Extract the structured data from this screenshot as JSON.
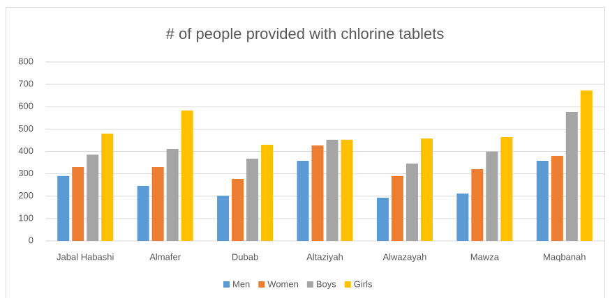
{
  "chart_data": {
    "type": "bar",
    "title": "# of people provided with chlorine tablets",
    "categories": [
      "Jabal Habashi",
      "Almafer",
      "Dubab",
      "Altaziyah",
      "Alwazayah",
      "Mawza",
      "Maqbanah"
    ],
    "series": [
      {
        "name": "Men",
        "color": "#5b9bd5",
        "values": [
          290,
          246,
          202,
          358,
          193,
          212,
          358
        ]
      },
      {
        "name": "Women",
        "color": "#ed7d31",
        "values": [
          330,
          330,
          277,
          427,
          290,
          321,
          380
        ]
      },
      {
        "name": "Boys",
        "color": "#a5a5a5",
        "values": [
          386,
          411,
          368,
          452,
          346,
          399,
          576
        ]
      },
      {
        "name": "Girls",
        "color": "#ffc000",
        "values": [
          480,
          583,
          430,
          452,
          458,
          464,
          673
        ]
      }
    ],
    "ylim": [
      0,
      800
    ],
    "yticks": [
      0,
      100,
      200,
      300,
      400,
      500,
      600,
      700,
      800
    ],
    "grid": true,
    "legend": "bottom"
  }
}
